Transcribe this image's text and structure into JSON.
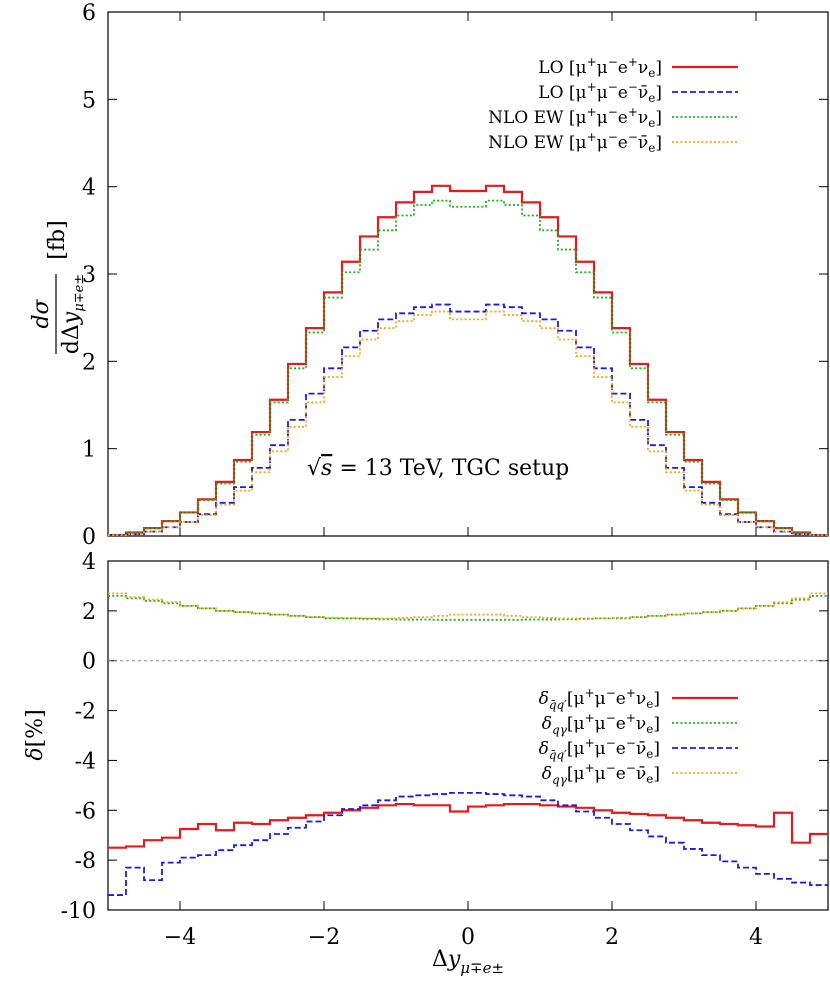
{
  "colors": {
    "lo_emu": "#e8191a",
    "lo_emubar": "#1a1ae8",
    "nlo_emu": "#19b319",
    "nlo_emubar": "#f5a516",
    "zero_line": "#888888"
  },
  "chart_data": [
    {
      "type": "line",
      "step": true,
      "xlabel": "Δy_{μ∓e±}",
      "ylabel": "dσ / dΔy_{μ∓e±} [fb]",
      "xlim": [
        -5,
        5
      ],
      "ylim": [
        0,
        6
      ],
      "xticks": [
        "−4",
        "−2",
        "0",
        "2",
        "4"
      ],
      "yticks": [
        "0",
        "1",
        "2",
        "3",
        "4",
        "5",
        "6"
      ],
      "annotation": "√s = 13 TeV, TGC setup",
      "legend_position": "top-right",
      "x_edges": [
        -5.0,
        -4.75,
        -4.5,
        -4.25,
        -4.0,
        -3.75,
        -3.5,
        -3.25,
        -3.0,
        -2.75,
        -2.5,
        -2.25,
        -2.0,
        -1.75,
        -1.5,
        -1.25,
        -1.0,
        -0.75,
        -0.5,
        -0.25,
        0.0,
        0.25,
        0.5,
        0.75,
        1.0,
        1.25,
        1.5,
        1.75,
        2.0,
        2.25,
        2.5,
        2.75,
        3.0,
        3.25,
        3.5,
        3.75,
        4.0,
        4.25,
        4.5,
        4.75,
        5.0
      ],
      "series": [
        {
          "name": "LO [μ⁺μ⁻e⁺νₑ]",
          "style": "solid",
          "color_key": "lo_emu",
          "values": [
            0.01,
            0.04,
            0.09,
            0.17,
            0.27,
            0.42,
            0.62,
            0.87,
            1.19,
            1.56,
            1.97,
            2.38,
            2.79,
            3.14,
            3.43,
            3.65,
            3.82,
            3.94,
            4.01,
            3.95,
            3.95,
            4.01,
            3.94,
            3.82,
            3.65,
            3.43,
            3.14,
            2.79,
            2.38,
            1.97,
            1.56,
            1.19,
            0.87,
            0.62,
            0.42,
            0.27,
            0.17,
            0.09,
            0.04,
            0.01
          ]
        },
        {
          "name": "LO [μ⁺μ⁻e⁻ν̄ₑ]",
          "style": "dashed",
          "color_key": "lo_emubar",
          "values": [
            0.01,
            0.02,
            0.05,
            0.1,
            0.16,
            0.25,
            0.38,
            0.56,
            0.78,
            1.04,
            1.33,
            1.63,
            1.92,
            2.16,
            2.35,
            2.48,
            2.55,
            2.62,
            2.65,
            2.57,
            2.57,
            2.65,
            2.62,
            2.55,
            2.48,
            2.35,
            2.16,
            1.92,
            1.63,
            1.33,
            1.04,
            0.78,
            0.56,
            0.38,
            0.25,
            0.16,
            0.1,
            0.05,
            0.02,
            0.01
          ]
        },
        {
          "name": "NLO EW [μ⁺μ⁻e⁺νₑ]",
          "style": "dotted",
          "color_key": "nlo_emu",
          "values": [
            0.01,
            0.04,
            0.09,
            0.17,
            0.27,
            0.41,
            0.6,
            0.85,
            1.16,
            1.53,
            1.92,
            2.33,
            2.73,
            3.02,
            3.28,
            3.5,
            3.67,
            3.79,
            3.84,
            3.77,
            3.77,
            3.84,
            3.79,
            3.67,
            3.5,
            3.28,
            3.02,
            2.73,
            2.33,
            1.92,
            1.53,
            1.16,
            0.85,
            0.6,
            0.41,
            0.27,
            0.17,
            0.09,
            0.04,
            0.01
          ]
        },
        {
          "name": "NLO EW [μ⁺μ⁻e⁻ν̄ₑ]",
          "style": "dotted",
          "color_key": "nlo_emubar",
          "values": [
            0.01,
            0.02,
            0.05,
            0.1,
            0.16,
            0.24,
            0.36,
            0.52,
            0.73,
            0.97,
            1.25,
            1.53,
            1.82,
            2.06,
            2.25,
            2.38,
            2.46,
            2.53,
            2.57,
            2.48,
            2.48,
            2.57,
            2.53,
            2.46,
            2.38,
            2.25,
            2.06,
            1.82,
            1.53,
            1.25,
            0.97,
            0.73,
            0.52,
            0.36,
            0.24,
            0.16,
            0.1,
            0.05,
            0.02,
            0.01
          ]
        }
      ]
    },
    {
      "type": "line",
      "step": true,
      "xlabel": "Δy_{μ∓e±}",
      "ylabel": "δ[%]",
      "xlim": [
        -5,
        5
      ],
      "ylim": [
        -10,
        4
      ],
      "xticks": [
        "−4",
        "−2",
        "0",
        "2",
        "4"
      ],
      "yticks": [
        "-10",
        "-8",
        "-6",
        "-4",
        "-2",
        "0",
        "2",
        "4"
      ],
      "legend_position": "bottom-right",
      "x_edges": [
        -5.0,
        -4.75,
        -4.5,
        -4.25,
        -4.0,
        -3.75,
        -3.5,
        -3.25,
        -3.0,
        -2.75,
        -2.5,
        -2.25,
        -2.0,
        -1.75,
        -1.5,
        -1.25,
        -1.0,
        -0.75,
        -0.5,
        -0.25,
        0.0,
        0.25,
        0.5,
        0.75,
        1.0,
        1.25,
        1.5,
        1.75,
        2.0,
        2.25,
        2.5,
        2.75,
        3.0,
        3.25,
        3.5,
        3.75,
        4.0,
        4.25,
        4.5,
        4.75,
        5.0
      ],
      "series": [
        {
          "name": "δ_{q̄q′} [μ⁺μ⁻e⁺νₑ]",
          "style": "solid",
          "color_key": "lo_emu",
          "values": [
            -7.5,
            -7.45,
            -7.2,
            -7.1,
            -6.75,
            -6.55,
            -6.8,
            -6.5,
            -6.55,
            -6.4,
            -6.3,
            -6.2,
            -6.1,
            -6.0,
            -5.9,
            -5.8,
            -5.75,
            -5.8,
            -5.8,
            -6.05,
            -5.85,
            -5.8,
            -5.75,
            -5.75,
            -5.8,
            -5.85,
            -5.9,
            -6.0,
            -6.1,
            -6.15,
            -6.2,
            -6.3,
            -6.4,
            -6.5,
            -6.55,
            -6.6,
            -6.65,
            -6.1,
            -7.3,
            -6.95
          ]
        },
        {
          "name": "δ_{qγ} [μ⁺μ⁻e⁺νₑ]",
          "style": "dotted",
          "color_key": "nlo_emu",
          "values": [
            2.6,
            2.5,
            2.4,
            2.3,
            2.2,
            2.1,
            2.0,
            1.95,
            1.9,
            1.85,
            1.8,
            1.75,
            1.7,
            1.7,
            1.68,
            1.66,
            1.65,
            1.65,
            1.64,
            1.64,
            1.64,
            1.64,
            1.64,
            1.65,
            1.65,
            1.66,
            1.68,
            1.7,
            1.7,
            1.75,
            1.8,
            1.85,
            1.9,
            1.95,
            2.0,
            2.1,
            2.2,
            2.3,
            2.45,
            2.6
          ]
        },
        {
          "name": "δ_{q̄q′} [μ⁺μ⁻e⁻ν̄ₑ]",
          "style": "dashed",
          "color_key": "lo_emubar",
          "values": [
            -9.4,
            -8.3,
            -8.8,
            -8.1,
            -7.9,
            -7.8,
            -7.6,
            -7.4,
            -7.2,
            -6.95,
            -6.7,
            -6.45,
            -6.2,
            -5.95,
            -5.8,
            -5.6,
            -5.45,
            -5.4,
            -5.35,
            -5.3,
            -5.3,
            -5.35,
            -5.4,
            -5.45,
            -5.6,
            -5.8,
            -6.05,
            -6.3,
            -6.55,
            -6.8,
            -7.05,
            -7.3,
            -7.55,
            -7.8,
            -8.05,
            -8.3,
            -8.55,
            -8.75,
            -8.9,
            -9.0
          ]
        },
        {
          "name": "δ_{qγ} [μ⁺μ⁻e⁻ν̄ₑ]",
          "style": "dotted",
          "color_key": "nlo_emubar",
          "values": [
            2.7,
            2.55,
            2.45,
            2.35,
            2.2,
            2.1,
            2.0,
            1.95,
            1.9,
            1.85,
            1.8,
            1.75,
            1.72,
            1.7,
            1.7,
            1.7,
            1.72,
            1.75,
            1.8,
            1.85,
            1.85,
            1.85,
            1.8,
            1.75,
            1.72,
            1.7,
            1.7,
            1.7,
            1.72,
            1.75,
            1.8,
            1.85,
            1.9,
            1.95,
            2.0,
            2.1,
            2.2,
            2.35,
            2.5,
            2.7
          ]
        }
      ]
    }
  ]
}
